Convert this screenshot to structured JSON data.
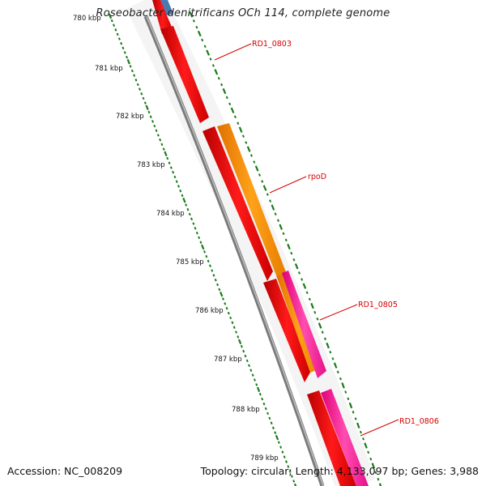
{
  "header": {
    "title": "Roseobacter denitrificans OCh 114, complete genome"
  },
  "footer": {
    "accession": "Accession: NC_008209",
    "summary": "Topology: circular; Length: 4,133,097 bp; Genes: 3,988"
  },
  "scale": {
    "tick_labels": [
      "780 kbp",
      "781 kbp",
      "782 kbp",
      "783 kbp",
      "784 kbp",
      "785 kbp",
      "786 kbp",
      "787 kbp",
      "788 kbp",
      "789 kbp"
    ]
  },
  "genes": [
    {
      "name": "RD1_0803",
      "color": "#ff0000",
      "strand": "inner"
    },
    {
      "name": "rpoD",
      "color": "#ff8c00",
      "strand": "outer"
    },
    {
      "name": "RD1_0805",
      "color": "#ff1493",
      "strand": "outer"
    },
    {
      "name": "RD1_0806",
      "color": "#ff1493",
      "strand": "outer"
    }
  ],
  "colors": {
    "backbone": "#808080",
    "tick": "#1a7a1a",
    "label_line": "#d40000",
    "blue_feature": "#4a7ab0"
  }
}
